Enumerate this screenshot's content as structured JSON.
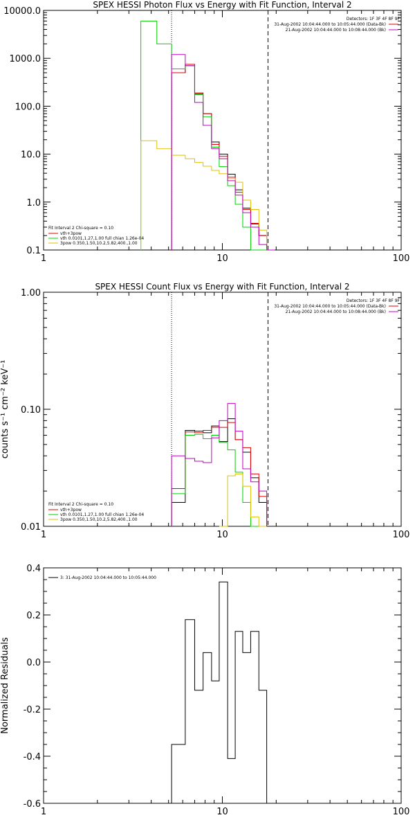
{
  "colors": {
    "background": "#ffffff",
    "axes": "#000000",
    "data": "#000000",
    "total": "#e00000",
    "thermal": "#00d000",
    "powerlaw": "#e0c000",
    "bk": "#c000c0"
  },
  "chart_data": [
    {
      "type": "line",
      "step": true,
      "title": "SPEX HESSI Photon Flux vs Energy with Fit Function, Interval 2",
      "xlabel": "",
      "ylabel": "",
      "xscale": "log",
      "yscale": "log",
      "xlim": [
        1,
        100
      ],
      "ylim": [
        0.1,
        10000
      ],
      "x_tick_labels": [
        "1",
        "10",
        "100"
      ],
      "y_tick_labels": [
        "0.1",
        "1.0",
        "10.0",
        "100.0",
        "1000.0",
        "10000.0"
      ],
      "vlines": [
        {
          "x": 5.2,
          "style": "dotted"
        },
        {
          "x": 18.0,
          "style": "dashed"
        }
      ],
      "legend_header": "Detectors: 1F 3F 4F 8F 9F",
      "legend_topright": [
        {
          "text": "31-Aug-2002 10:04:44.000 to 10:05:44.000 (Data-Bk)",
          "color": "#e00000"
        },
        {
          "text": "21-Aug-2002 10:04:44.000 to 10:08:44.000 (Bk)",
          "color": "#c000c0"
        }
      ],
      "legend_bottomleft": {
        "header": "Fit Interval 2   Chi-square = 0.10",
        "entries": [
          {
            "text": "vth+3pow",
            "color": "#e00000"
          },
          {
            "text": "vth 0.0101,1.27,1.00  full chian 1.26e-04",
            "color": "#00d000"
          },
          {
            "text": "3pow 0.350,1.50,10.2,5.82,400.,1.00",
            "color": "#e0c000"
          }
        ]
      },
      "bin_edges": [
        3.5,
        4.3,
        5.2,
        6.2,
        7.0,
        7.8,
        8.7,
        9.6,
        10.7,
        11.8,
        13.0,
        14.4,
        16.0,
        17.7,
        19.6
      ],
      "series": [
        {
          "name": "",
          "role": "data",
          "values": [
            null,
            null,
            500,
            700,
            180,
            70,
            18,
            10,
            3.8,
            1.8,
            0.75,
            0.35,
            0.2,
            0.09
          ]
        },
        {
          "name": "vth+3pow",
          "role": "total",
          "values": [
            null,
            null,
            500,
            750,
            190,
            70,
            16,
            9,
            3.3,
            1.6,
            0.7,
            0.36,
            0.2,
            0.09
          ]
        },
        {
          "name": "vth",
          "role": "thermal",
          "values": [
            6000,
            2000,
            600,
            700,
            175,
            60,
            14,
            5.5,
            2.2,
            0.9,
            0.3,
            0.1,
            0.02,
            null
          ]
        },
        {
          "name": "3pow",
          "role": "powerlaw",
          "values": [
            19,
            13,
            9.5,
            8,
            6.7,
            5.6,
            4.6,
            3.9,
            3.1,
            2.6,
            1.1,
            0.7,
            0.26,
            0.09
          ]
        },
        {
          "name": "",
          "role": "bk",
          "values": [
            null,
            null,
            1200,
            700,
            120,
            40,
            13,
            8,
            2.8,
            1.4,
            0.6,
            0.3,
            0.13,
            0.08
          ]
        }
      ]
    },
    {
      "type": "line",
      "step": true,
      "title": "SPEX HESSI Count Flux vs Energy with Fit Function, Interval 2",
      "xlabel": "",
      "ylabel": "counts s⁻¹ cm⁻² keV⁻¹",
      "xscale": "log",
      "yscale": "log",
      "xlim": [
        1,
        100
      ],
      "ylim": [
        0.01,
        1.0
      ],
      "x_tick_labels": [
        "1",
        "10",
        "100"
      ],
      "y_tick_labels": [
        "0.01",
        "0.10",
        "1.00"
      ],
      "vlines": [
        {
          "x": 5.2,
          "style": "dotted"
        },
        {
          "x": 18.0,
          "style": "dashed"
        }
      ],
      "legend_header": "Detectors: 1F 3F 4F 8F 9F",
      "legend_topright": [
        {
          "text": "31-Aug-2002 10:04:44.000 to 10:05:44.000 (Data-Bk)",
          "color": "#e00000"
        },
        {
          "text": "21-Aug-2002 10:04:44.000 to 10:08:44.000 (Bk)",
          "color": "#c000c0"
        }
      ],
      "legend_bottomleft": {
        "header": "Fit Interval 2   Chi-square = 0.10",
        "entries": [
          {
            "text": "vth+3pow",
            "color": "#e00000"
          },
          {
            "text": "vth 0.0101,1.27,1.00  full chian 1.26e-04",
            "color": "#00d000"
          },
          {
            "text": "3pow 0.350,1.50,10.2,5.82,400.,1.00",
            "color": "#e0c000"
          }
        ]
      },
      "bin_edges": [
        5.2,
        6.2,
        7.0,
        7.8,
        8.7,
        9.6,
        10.7,
        11.8,
        13.0,
        14.4,
        16.0,
        17.7
      ],
      "series": [
        {
          "name": "",
          "role": "data",
          "values": [
            0.016,
            0.066,
            0.065,
            0.063,
            0.072,
            0.053,
            0.083,
            0.055,
            0.043,
            0.026,
            0.016
          ]
        },
        {
          "name": "vth+3pow",
          "role": "total",
          "values": [
            0.021,
            0.064,
            0.063,
            0.066,
            0.07,
            0.07,
            0.077,
            0.055,
            0.047,
            0.028,
            0.018
          ]
        },
        {
          "name": "vth",
          "role": "thermal",
          "values": [
            0.019,
            0.06,
            0.061,
            0.056,
            0.06,
            0.052,
            0.045,
            0.029,
            0.016,
            0.01,
            null
          ]
        },
        {
          "name": "3pow",
          "role": "powerlaw",
          "values": [
            null,
            null,
            null,
            null,
            null,
            0.01,
            0.027,
            0.028,
            0.022,
            0.012,
            0.01
          ]
        },
        {
          "name": "",
          "role": "bk",
          "values": [
            0.04,
            0.038,
            0.036,
            0.035,
            0.057,
            0.08,
            0.112,
            0.065,
            0.031,
            0.024,
            0.02
          ]
        }
      ]
    },
    {
      "type": "line",
      "step": true,
      "title": "",
      "xlabel": "",
      "ylabel": "Normalized Residuals",
      "xscale": "log",
      "yscale": "linear",
      "xlim": [
        1,
        100
      ],
      "ylim": [
        -0.6,
        0.4
      ],
      "x_tick_labels": [
        "1",
        "10",
        "100"
      ],
      "y_tick_labels": [
        "-0.6",
        "-0.4",
        "-0.2",
        "0.0",
        "0.2",
        "0.4"
      ],
      "legend_topleft": [
        {
          "text": "3: 31-Aug-2002 10:04:44.000 to 10:05:44.000",
          "color": "#000000"
        }
      ],
      "bin_edges": [
        5.2,
        6.2,
        7.0,
        7.8,
        8.7,
        9.6,
        10.7,
        11.8,
        13.0,
        14.4,
        16.0,
        17.7
      ],
      "series": [
        {
          "name": "",
          "role": "data",
          "values": [
            -0.35,
            0.18,
            -0.12,
            0.04,
            -0.08,
            0.34,
            -0.41,
            0.13,
            0.04,
            0.13,
            -0.12
          ]
        }
      ]
    }
  ]
}
